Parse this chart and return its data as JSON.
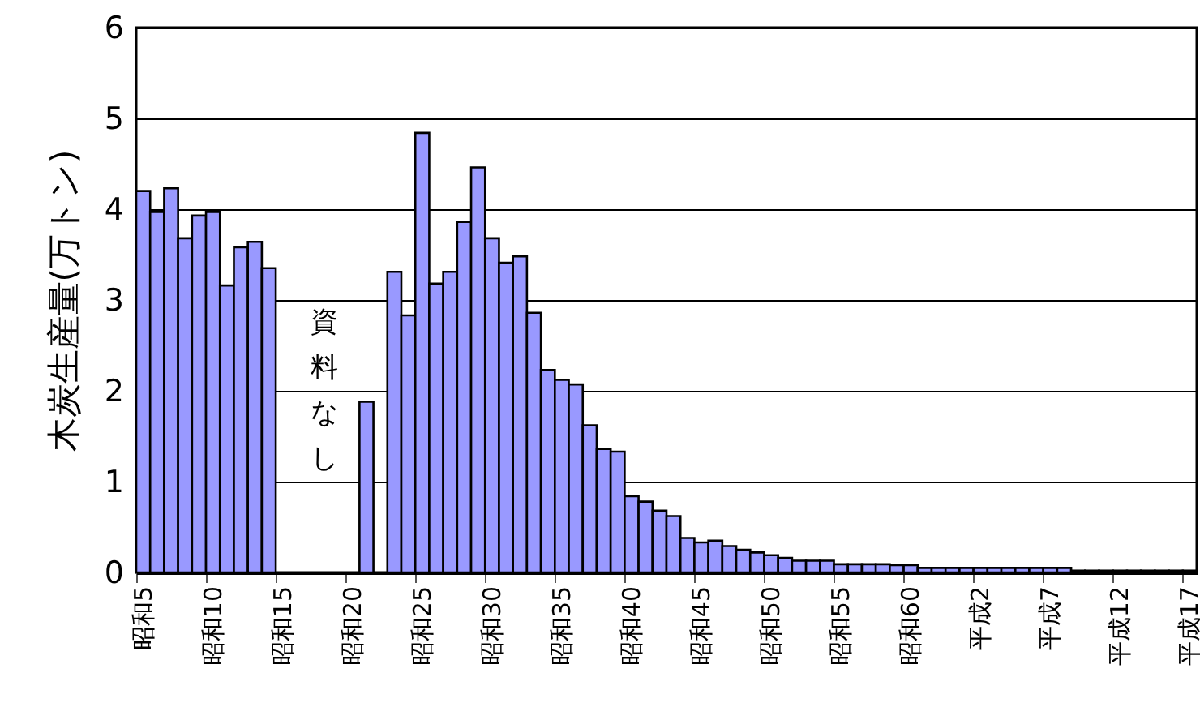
{
  "chart_data": {
    "type": "bar",
    "ylabel": "木炭生産量(万トン)",
    "categories": [
      "昭和5",
      null,
      null,
      null,
      null,
      "昭和10",
      null,
      null,
      null,
      null,
      "昭和15",
      null,
      null,
      null,
      null,
      "昭和20",
      null,
      null,
      null,
      null,
      "昭和25",
      null,
      null,
      null,
      null,
      "昭和30",
      null,
      null,
      null,
      null,
      "昭和35",
      null,
      null,
      null,
      null,
      "昭和40",
      null,
      null,
      null,
      null,
      "昭和45",
      null,
      null,
      null,
      null,
      "昭和50",
      null,
      null,
      null,
      null,
      "昭和55",
      null,
      null,
      null,
      null,
      "昭和60",
      null,
      null,
      null,
      null,
      "平成2",
      null,
      null,
      null,
      null,
      "平成7",
      null,
      null,
      null,
      null,
      "平成12",
      null,
      null,
      null,
      null,
      "平成17"
    ],
    "values": [
      4.2,
      3.97,
      4.23,
      3.68,
      3.93,
      3.97,
      3.16,
      3.58,
      3.64,
      3.35,
      null,
      null,
      null,
      null,
      null,
      null,
      1.88,
      null,
      3.31,
      2.83,
      4.84,
      3.18,
      3.31,
      3.86,
      4.46,
      3.68,
      3.41,
      3.48,
      2.86,
      2.23,
      2.12,
      2.07,
      1.62,
      1.36,
      1.33,
      0.84,
      0.78,
      0.68,
      0.62,
      0.38,
      0.33,
      0.35,
      0.29,
      0.25,
      0.22,
      0.19,
      0.16,
      0.13,
      0.13,
      0.13,
      0.09,
      0.09,
      0.09,
      0.09,
      0.08,
      0.08,
      0.05,
      0.05,
      0.05,
      0.05,
      0.05,
      0.05,
      0.05,
      0.05,
      0.05,
      0.05,
      0.05,
      0.02,
      0.02,
      0.02,
      0.02,
      0.02,
      0.02,
      0.02,
      0.02,
      0.02
    ],
    "color": "#9999ff",
    "ylim": [
      0,
      6
    ],
    "yticks": [
      0,
      1,
      2,
      3,
      4,
      5,
      6
    ],
    "grid": "y",
    "annotations": [
      "資料なし"
    ]
  }
}
